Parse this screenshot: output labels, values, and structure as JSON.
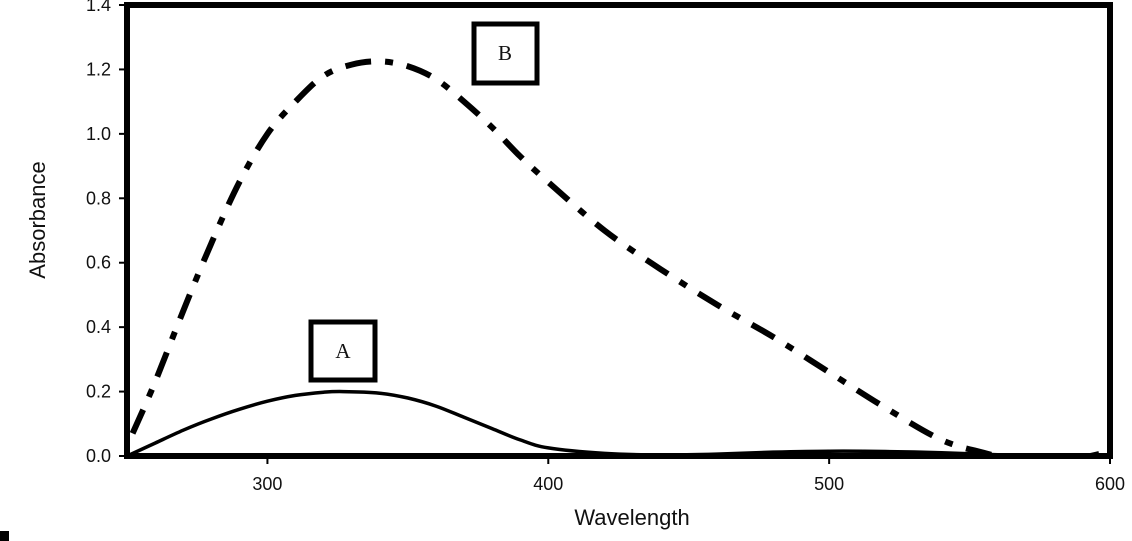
{
  "chart_data": {
    "type": "line",
    "title": "",
    "xlabel": "Wavelength",
    "ylabel": "Absorbance",
    "xlim": [
      250,
      600
    ],
    "ylim": [
      0,
      1.4
    ],
    "x_ticks": [
      "300",
      "400",
      "500",
      "600"
    ],
    "x_tick_values": [
      300,
      400,
      500,
      600
    ],
    "y_ticks": [
      "0.0",
      "0.2",
      "0.4",
      "0.6",
      "0.8",
      "1.0",
      "1.2",
      "1.4"
    ],
    "y_tick_values": [
      0,
      0.2,
      0.4,
      0.6,
      0.8,
      1.0,
      1.2,
      1.4
    ],
    "grid": false,
    "series": [
      {
        "name": "A",
        "style": "solid",
        "color": "#000000",
        "x": [
          250,
          260,
          270,
          280,
          290,
          300,
          310,
          320,
          327,
          340,
          350,
          360,
          370,
          380,
          390,
          400,
          420,
          440,
          460,
          480,
          500,
          520,
          540,
          560,
          580,
          590,
          596
        ],
        "y": [
          0.0,
          0.04,
          0.08,
          0.115,
          0.145,
          0.17,
          0.188,
          0.198,
          0.2,
          0.195,
          0.18,
          0.155,
          0.12,
          0.085,
          0.05,
          0.025,
          0.008,
          0.003,
          0.006,
          0.012,
          0.015,
          0.014,
          0.01,
          0.004,
          0.0,
          0.0,
          0.01
        ]
      },
      {
        "name": "B",
        "style": "dash-dot",
        "color": "#000000",
        "x": [
          252,
          260,
          270,
          280,
          290,
          300,
          310,
          320,
          330,
          340,
          350,
          360,
          370,
          380,
          390,
          400,
          420,
          440,
          460,
          480,
          500,
          520,
          540,
          555,
          560
        ],
        "y": [
          0.07,
          0.23,
          0.45,
          0.66,
          0.85,
          1.0,
          1.1,
          1.18,
          1.215,
          1.225,
          1.21,
          1.17,
          1.1,
          1.02,
          0.93,
          0.85,
          0.7,
          0.58,
          0.47,
          0.37,
          0.26,
          0.15,
          0.05,
          0.01,
          0.0
        ]
      }
    ]
  }
}
